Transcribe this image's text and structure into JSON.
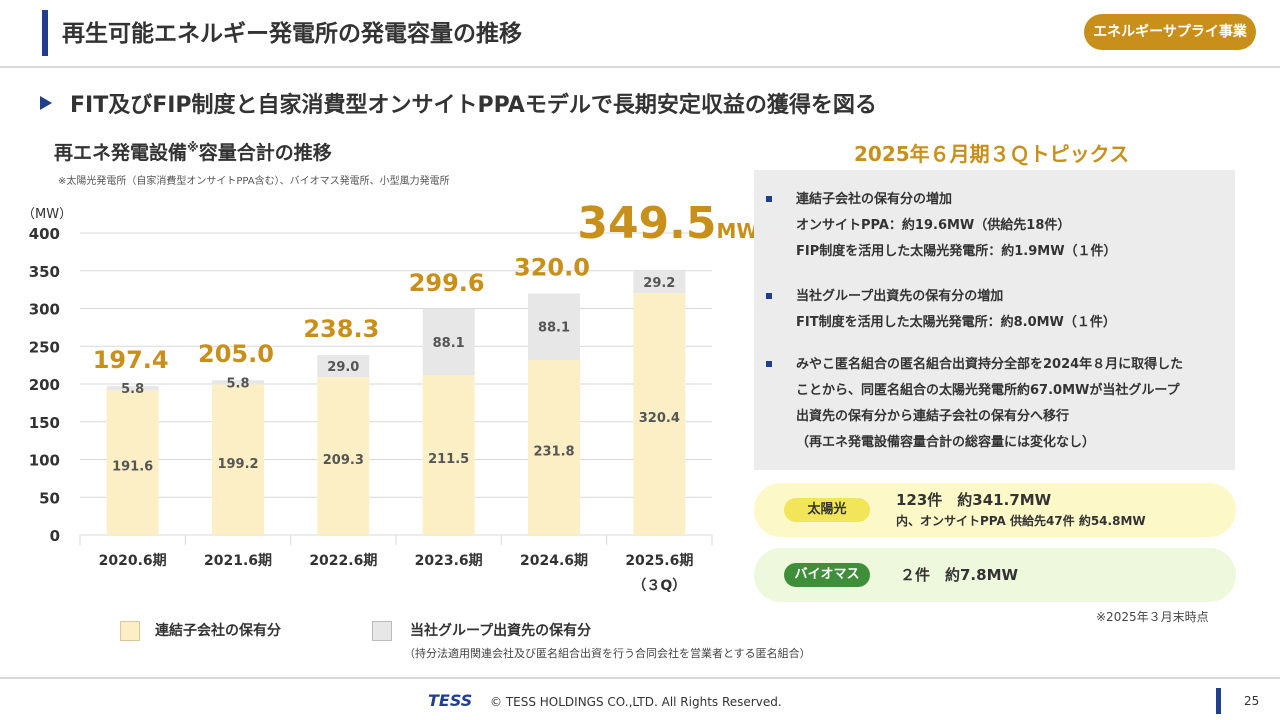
{
  "header": {
    "title": "再生可能エネルギー発電所の発電容量の推移",
    "badge": "エネルギーサプライ事業",
    "subtitle": "FIT及びFIP制度と自家消費型オンサイトPPAモデルで長期安定収益の獲得を図る"
  },
  "chart_heading": {
    "main": "再エネ発電設備",
    "mark": "※",
    "rest": "容量合計の推移"
  },
  "chart_note": "※太陽光発電所（自家消費型オンサイトPPA含む）、バイオマス発電所、小型風力発電所",
  "chart_data": {
    "type": "bar",
    "stacked": true,
    "ylabel": "（MW）",
    "ylim": [
      0,
      400
    ],
    "yticks": [
      0,
      50,
      100,
      150,
      200,
      250,
      300,
      350,
      400
    ],
    "grid": true,
    "categories": [
      "2020.6期",
      "2021.6期",
      "2022.6期",
      "2023.6期",
      "2024.6期",
      "2025.6期"
    ],
    "category_sublabels": [
      "",
      "",
      "",
      "",
      "",
      "（３Q）"
    ],
    "series": [
      {
        "name": "連結子会社の保有分",
        "color": "#fcefc6",
        "values": [
          191.6,
          199.2,
          209.3,
          211.5,
          231.8,
          320.4
        ]
      },
      {
        "name": "当社グループ出資先の保有分",
        "color": "#e7e7e7",
        "values": [
          5.8,
          5.8,
          29.0,
          88.1,
          88.1,
          29.2
        ]
      }
    ],
    "totals": [
      "197.4",
      "205.0",
      "238.3",
      "299.6",
      "320.0",
      "349.5"
    ],
    "last_total_unit": "MW",
    "total_color": "#c8901a"
  },
  "legend": {
    "items": [
      {
        "label": "連結子会社の保有分",
        "color": "#fcefc6"
      },
      {
        "label": "当社グループ出資先の保有分",
        "color": "#e7e7e7"
      }
    ],
    "note": "（持分法適用関連会社及び匿名組合出資を行う合同会社を営業者とする匿名組合）"
  },
  "topics": {
    "title": "2025年６月期３Ｑトピックス",
    "items": [
      {
        "lines": [
          "連結子会社の保有分の増加",
          "オンサイトPPA：約19.6MW（供給先18件）",
          "FIP制度を活用した太陽光発電所：約1.9MW（１件）"
        ]
      },
      {
        "lines": [
          "当社グループ出資先の保有分の増加",
          "FIT制度を活用した太陽光発電所：約8.0MW（１件）"
        ]
      },
      {
        "lines": [
          "みやこ匿名組合の匿名組合出資持分全部を2024年８月に取得した",
          "ことから、同匿名組合の太陽光発電所約67.0MWが当社グループ",
          "出資先の保有分から連結子会社の保有分へ移行",
          "（再エネ発電設備容量合計の総容量には変化なし）"
        ]
      }
    ]
  },
  "solar": {
    "tag": "太陽光",
    "line1": "123件　約341.7MW",
    "line2": "内、オンサイトPPA 供給先47件 約54.8MW",
    "bg": "#fdf8c8",
    "tag_bg": "#f2e55a"
  },
  "biomass": {
    "tag": "バイオマス",
    "line1": "２件　約7.8MW",
    "bg": "#eef8dc",
    "tag_bg": "#3f8f3a"
  },
  "as_of": "※2025年３月末時点",
  "footer": {
    "logo": "TESS",
    "copyright": "© TESS HOLDINGS CO.,LTD. All Rights Reserved.",
    "page": "25"
  }
}
